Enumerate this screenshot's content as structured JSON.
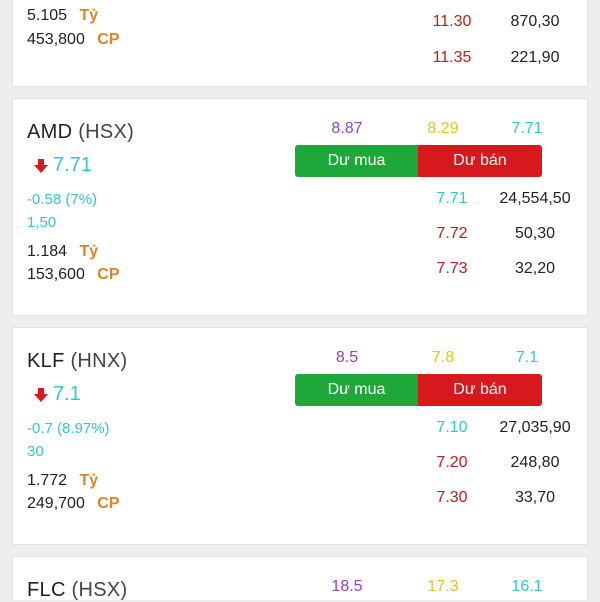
{
  "units": {
    "ty": "Tỷ",
    "cp": "CP"
  },
  "buttons": {
    "buy": "Dư mua",
    "sell": "Dư bán"
  },
  "colors": {
    "up_cyan": "#33c6cf",
    "down_red": "#b5211e",
    "high_purple": "#9a3fbf",
    "ref_yellow": "#e6c21a",
    "buy_green": "#1fa83a",
    "sell_red": "#d7191e",
    "unit_orange": "#d8852a"
  },
  "cards": [
    {
      "value_ty": "5.105",
      "volume_cp": "453,800",
      "orderbook": [
        {
          "price": "11.30",
          "volume": "870,30"
        },
        {
          "price": "11.35",
          "volume": "221,90"
        }
      ]
    },
    {
      "symbol": "AMD",
      "exchange": "(HSX)",
      "price": "7.71",
      "change": "-0.58 (7%)",
      "sub_value": "1,50",
      "value_ty": "1.184",
      "volume_cp": "153,600",
      "high": "8.87",
      "ref": "8.29",
      "low": "7.71",
      "orderbook": [
        {
          "price": "7.71",
          "volume": "24,554,50"
        },
        {
          "price": "7.72",
          "volume": "50,30"
        },
        {
          "price": "7.73",
          "volume": "32,20"
        }
      ]
    },
    {
      "symbol": "KLF",
      "exchange": "(HNX)",
      "price": "7.1",
      "change": "-0.7 (8.97%)",
      "sub_value": "30",
      "value_ty": "1.772",
      "volume_cp": "249,700",
      "high": "8.5",
      "ref": "7.8",
      "low": "7.1",
      "orderbook": [
        {
          "price": "7.10",
          "volume": "27,035,90"
        },
        {
          "price": "7.20",
          "volume": "248,80"
        },
        {
          "price": "7.30",
          "volume": "33,70"
        }
      ]
    },
    {
      "symbol": "FLC",
      "exchange": "(HSX)",
      "high": "18.5",
      "ref": "17.3",
      "low": "16.1"
    }
  ]
}
